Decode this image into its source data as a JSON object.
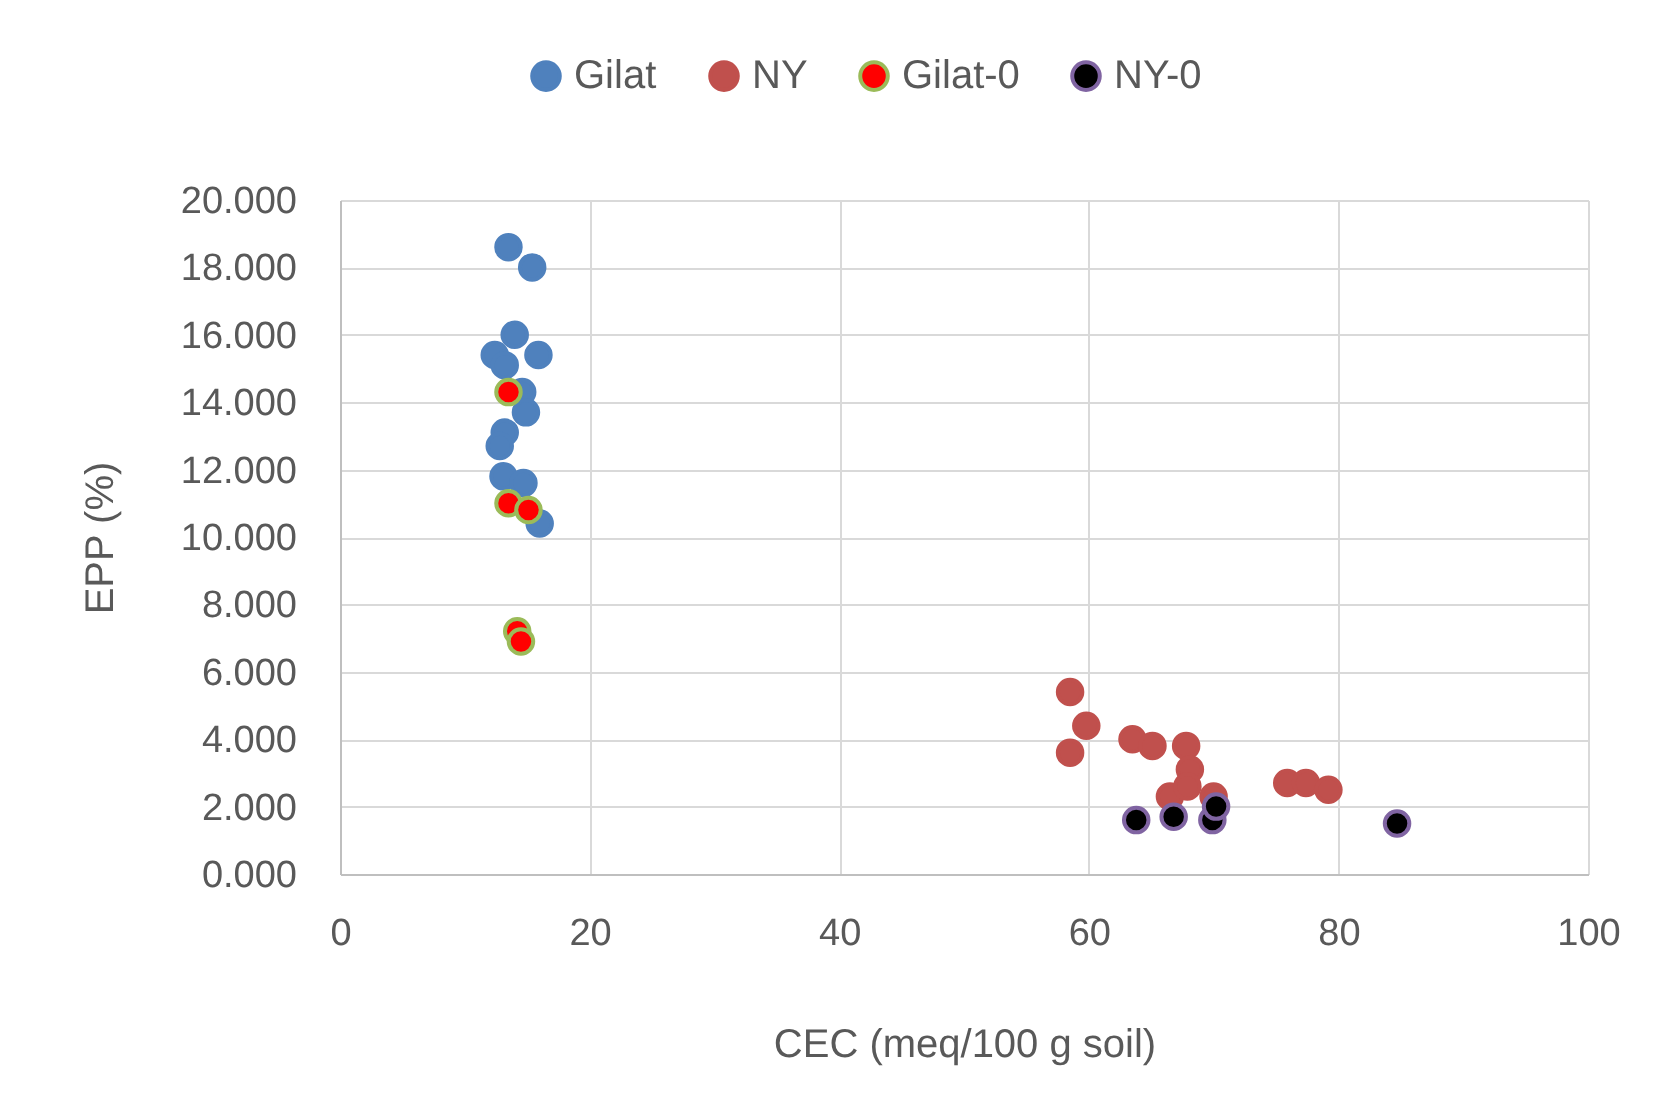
{
  "chart_data": {
    "type": "scatter",
    "xlabel": "CEC (meq/100 g soil)",
    "ylabel": "EPP (%)",
    "series": [
      {
        "name": "Gilat",
        "color": "#4f81bd",
        "x": [
          13.5,
          15.4,
          14.0,
          12.4,
          15.9,
          13.2,
          14.6,
          14.9,
          13.2,
          12.8,
          13.1,
          14.7,
          16.0
        ],
        "values": [
          18.6,
          18.0,
          16.0,
          15.4,
          15.4,
          15.1,
          14.3,
          13.7,
          13.1,
          12.7,
          11.8,
          11.6,
          10.4
        ]
      },
      {
        "name": "NY",
        "color": "#c0504d",
        "x": [
          58.5,
          59.8,
          58.5,
          63.5,
          65.1,
          67.8,
          68.1,
          66.5,
          67.9,
          70.0,
          75.9,
          77.4,
          79.2
        ],
        "values": [
          5.4,
          4.4,
          3.6,
          4.0,
          3.8,
          3.8,
          3.1,
          2.3,
          2.6,
          2.3,
          2.7,
          2.7,
          2.5
        ]
      },
      {
        "name": "Gilat-0",
        "color": "#ff0000",
        "x": [
          13.5,
          13.5,
          15.1,
          14.2,
          14.5
        ],
        "values": [
          14.3,
          11.0,
          10.8,
          7.2,
          6.9
        ]
      },
      {
        "name": "NY-0",
        "color": "#000000",
        "x": [
          63.8,
          66.8,
          69.9,
          70.2,
          84.7
        ],
        "values": [
          1.6,
          1.7,
          1.6,
          2.0,
          1.5
        ]
      }
    ],
    "xlim": [
      0,
      100
    ],
    "xticks": [
      0,
      20,
      40,
      60,
      80,
      100
    ],
    "ylim": [
      0,
      20
    ],
    "yticks": [
      {
        "value": 0,
        "label": "0.000"
      },
      {
        "value": 2,
        "label": "2.000"
      },
      {
        "value": 4,
        "label": "4.000"
      },
      {
        "value": 6,
        "label": "6.000"
      },
      {
        "value": 8,
        "label": "8.000"
      },
      {
        "value": 10,
        "label": "10.000"
      },
      {
        "value": 12,
        "label": "12.000"
      },
      {
        "value": 14,
        "label": "14.000"
      },
      {
        "value": 16,
        "label": "16.000"
      },
      {
        "value": 18,
        "label": "18.000"
      },
      {
        "value": 20,
        "label": "20.000"
      }
    ],
    "grid": true,
    "legend": "top",
    "marker": "circle"
  }
}
